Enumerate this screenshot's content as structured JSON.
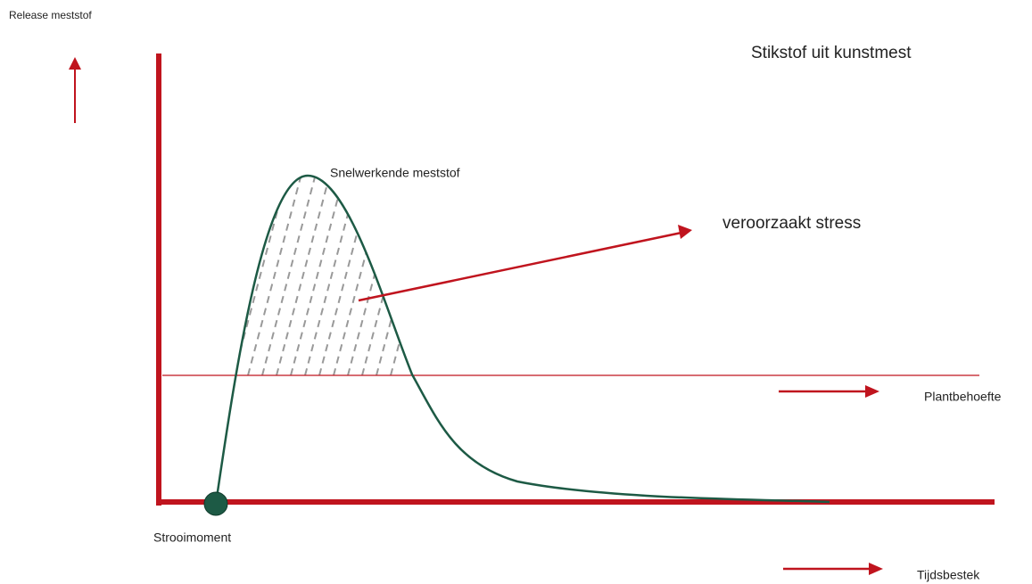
{
  "labels": {
    "y_axis": "Release meststof",
    "title": "Stikstof uit kunstmest",
    "peak": "Snelwerkende meststof",
    "stress": "veroorzaakt stress",
    "need": "Plantbehoefte",
    "start": "Strooimoment",
    "time": "Tijdsbestek"
  }
}
